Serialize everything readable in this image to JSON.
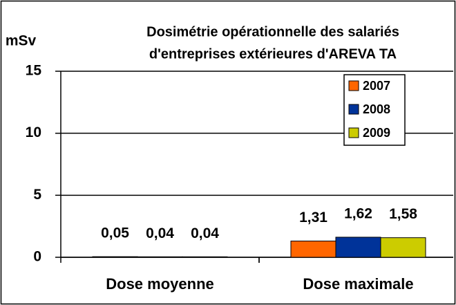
{
  "chart_data": {
    "type": "bar",
    "title": [
      "Dosimétrie opérationnelle des salariés",
      "d'entreprises extérieures d'AREVA TA"
    ],
    "y_label": "mSv",
    "categories": [
      "Dose moyenne",
      "Dose maximale"
    ],
    "series": [
      {
        "name": "2007",
        "color": "#ff6600",
        "values": [
          0.05,
          1.31
        ],
        "value_labels": [
          "0,05",
          "1,31"
        ]
      },
      {
        "name": "2008",
        "color": "#003399",
        "values": [
          0.04,
          1.62
        ],
        "value_labels": [
          "0,04",
          "1,62"
        ]
      },
      {
        "name": "2009",
        "color": "#cccc00",
        "values": [
          0.04,
          1.58
        ],
        "value_labels": [
          "0,04",
          "1,58"
        ]
      }
    ],
    "ylim": [
      0,
      15
    ],
    "yticks": [
      0,
      5,
      10,
      15
    ],
    "grid": true,
    "legend": "top-right"
  }
}
